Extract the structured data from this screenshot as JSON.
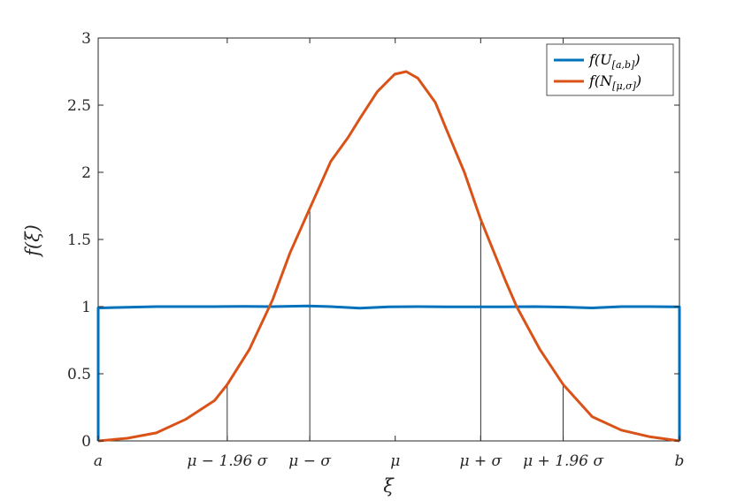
{
  "chart_data": {
    "type": "line",
    "title": "",
    "xlabel": "ξ",
    "ylabel": "f(ξ)",
    "xlim": [
      0,
      10
    ],
    "ylim": [
      0,
      3
    ],
    "grid": false,
    "legend_placement": "top-right",
    "x_ticks": [
      {
        "x": 0,
        "label": "a"
      },
      {
        "x": 2.22,
        "label": "μ − 1.96 σ"
      },
      {
        "x": 3.64,
        "label": "μ − σ"
      },
      {
        "x": 5.11,
        "label": "μ"
      },
      {
        "x": 6.58,
        "label": "μ + σ"
      },
      {
        "x": 8.0,
        "label": "μ + 1.96 σ"
      },
      {
        "x": 10,
        "label": "b"
      }
    ],
    "y_ticks": [
      0,
      0.5,
      1,
      1.5,
      2,
      2.5,
      3
    ],
    "y_tick_labels": [
      "0",
      "0.5",
      "1",
      "1.5",
      "2",
      "2.5",
      "3"
    ],
    "reference_lines": [
      {
        "x": 2.22,
        "y": 0.42
      },
      {
        "x": 3.64,
        "y": 1.71
      },
      {
        "x": 6.58,
        "y": 1.65
      },
      {
        "x": 8.0,
        "y": 0.42
      }
    ],
    "series": [
      {
        "name": "f(U[a,b])",
        "legend_main": "f(U",
        "legend_sub": "[a,b]",
        "legend_close": ")",
        "color": "#0072BD",
        "points": [
          [
            0,
            0
          ],
          [
            0,
            0.99
          ],
          [
            0.5,
            0.995
          ],
          [
            1.0,
            1.0
          ],
          [
            1.5,
            1.0
          ],
          [
            2.0,
            1.0
          ],
          [
            2.5,
            1.002
          ],
          [
            3.0,
            1.0
          ],
          [
            3.6,
            1.005
          ],
          [
            4.0,
            1.0
          ],
          [
            4.5,
            0.988
          ],
          [
            5.0,
            0.998
          ],
          [
            5.5,
            1.0
          ],
          [
            6.0,
            0.998
          ],
          [
            6.5,
            0.998
          ],
          [
            7.0,
            0.998
          ],
          [
            7.5,
            1.0
          ],
          [
            8.0,
            0.997
          ],
          [
            8.5,
            0.99
          ],
          [
            9.0,
            1.0
          ],
          [
            9.5,
            1.0
          ],
          [
            10,
            0.998
          ],
          [
            10,
            0
          ]
        ]
      },
      {
        "name": "f(N[μ,σ])",
        "legend_main": "f(N",
        "legend_sub": "[μ,σ]",
        "legend_close": ")",
        "color": "#D95319",
        "points": [
          [
            0,
            0
          ],
          [
            0.5,
            0.02
          ],
          [
            1.0,
            0.06
          ],
          [
            1.5,
            0.16
          ],
          [
            2.0,
            0.3
          ],
          [
            2.22,
            0.42
          ],
          [
            2.6,
            0.68
          ],
          [
            3.0,
            1.05
          ],
          [
            3.3,
            1.4
          ],
          [
            3.64,
            1.73
          ],
          [
            4.0,
            2.08
          ],
          [
            4.3,
            2.26
          ],
          [
            4.5,
            2.4
          ],
          [
            4.8,
            2.6
          ],
          [
            5.1,
            2.73
          ],
          [
            5.3,
            2.75
          ],
          [
            5.5,
            2.7
          ],
          [
            5.8,
            2.52
          ],
          [
            6.0,
            2.31
          ],
          [
            6.3,
            2.0
          ],
          [
            6.58,
            1.65
          ],
          [
            7.0,
            1.2
          ],
          [
            7.2,
            1.0
          ],
          [
            7.6,
            0.68
          ],
          [
            8.0,
            0.42
          ],
          [
            8.5,
            0.18
          ],
          [
            9.0,
            0.08
          ],
          [
            9.5,
            0.03
          ],
          [
            10,
            0
          ]
        ]
      }
    ]
  }
}
